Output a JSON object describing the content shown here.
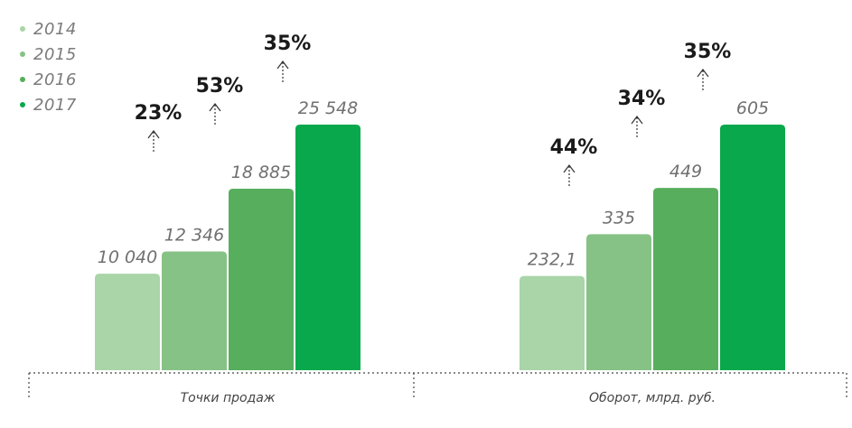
{
  "chart_data": {
    "type": "bar",
    "legend": {
      "placement": "top-left",
      "items": [
        {
          "label": "2014",
          "color": "#a9d5a8"
        },
        {
          "label": "2015",
          "color": "#86c285"
        },
        {
          "label": "2016",
          "color": "#57ae5d"
        },
        {
          "label": "2017",
          "color": "#0aa84c"
        }
      ]
    },
    "groups": [
      {
        "label": "Точки продаж",
        "values": [
          10040,
          12346,
          18885,
          25548
        ],
        "value_labels": [
          "10 040",
          "12 346",
          "18 885",
          "25 548"
        ],
        "growth": [
          "23%",
          "53%",
          "35%"
        ]
      },
      {
        "label": "Оборот, млрд. руб.",
        "values": [
          232.1,
          335,
          449,
          605
        ],
        "value_labels": [
          "232,1",
          "335",
          "449",
          "605"
        ],
        "growth": [
          "44%",
          "34%",
          "35%"
        ]
      }
    ],
    "grid": false
  }
}
